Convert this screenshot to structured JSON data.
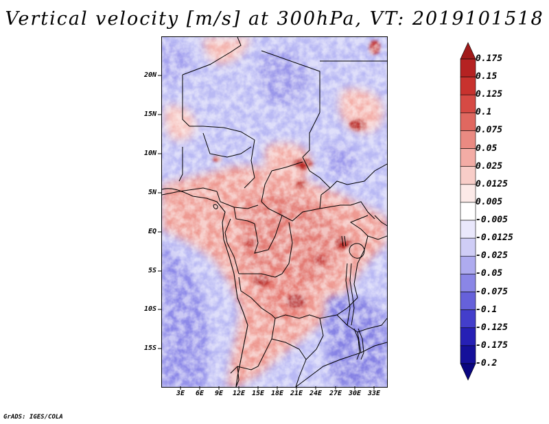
{
  "title": "Vertical velocity [m/s] at 300hPa, VT: 2019101518",
  "credit": "GrADS: IGES/COLA",
  "y_labels": [
    "20N",
    "15N",
    "10N",
    "5N",
    "EQ",
    "5S",
    "10S",
    "15S"
  ],
  "x_labels": [
    "3E",
    "6E",
    "9E",
    "12E",
    "15E",
    "18E",
    "21E",
    "24E",
    "27E",
    "30E",
    "33E"
  ],
  "colorbar": {
    "labels": [
      "0.175",
      "0.15",
      "0.125",
      "0.1",
      "0.075",
      "0.05",
      "0.025",
      "0.0125",
      "0.005",
      "-0.005",
      "-0.0125",
      "-0.025",
      "-0.05",
      "-0.075",
      "-0.1",
      "-0.125",
      "-0.175",
      "-0.2"
    ],
    "colors": [
      "#a01a1a",
      "#b52222",
      "#c8322e",
      "#d64a44",
      "#e06860",
      "#ea8a82",
      "#f3aca5",
      "#f8cdc8",
      "#fceae8",
      "#ffffff",
      "#eae8fc",
      "#cfcdf6",
      "#aeabef",
      "#8a86e6",
      "#6661da",
      "#433ecb",
      "#2620b5",
      "#15109a",
      "#0a0680"
    ]
  },
  "colors": {
    "map_background": "#e9e9ff",
    "positive_area": "#f0a8a0",
    "negative_area": "#a8a8f0"
  }
}
